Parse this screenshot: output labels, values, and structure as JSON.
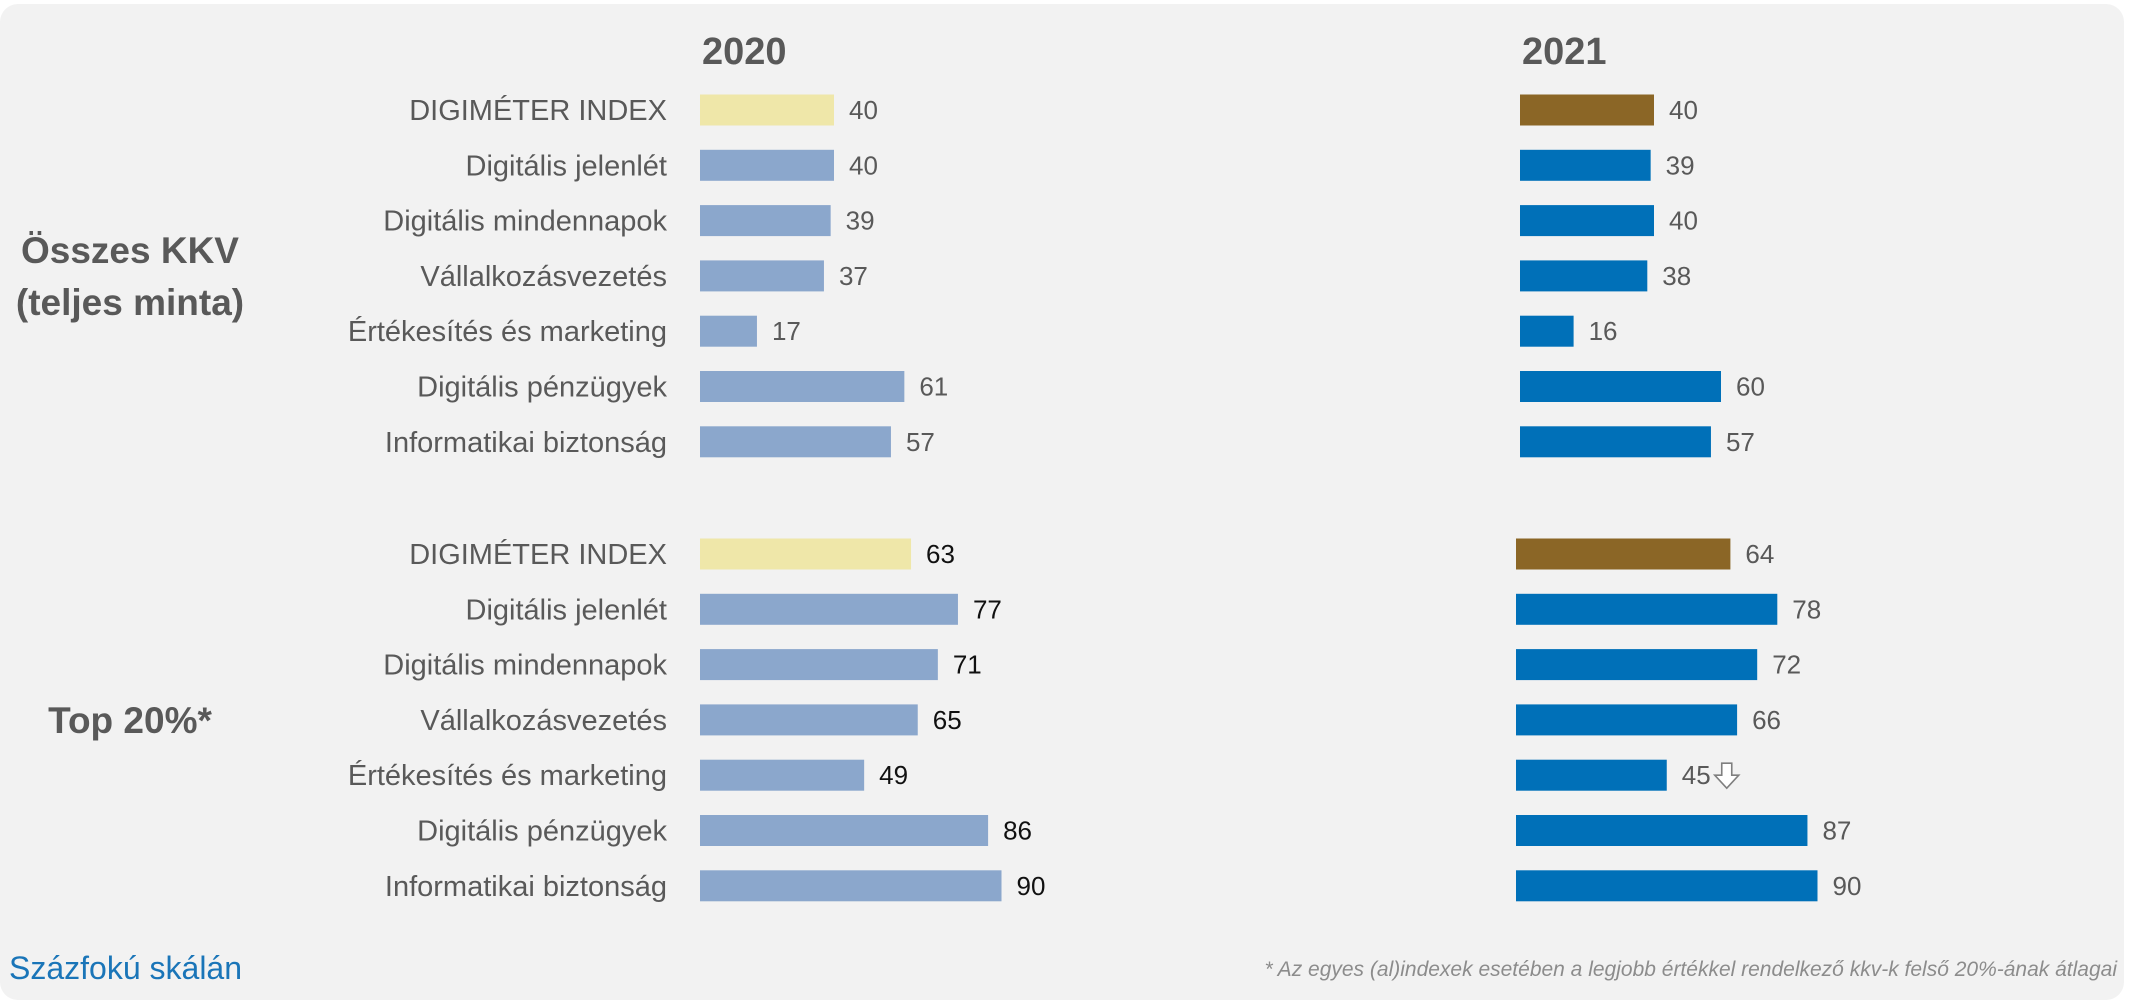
{
  "footer": {
    "scale_note": "Százfokú skálán",
    "footnote": "* Az egyes (al)indexek esetében a legjobb értékkel rendelkező kkv-k felső 20%-ának átlagai"
  },
  "colors": {
    "index_2020": "#efe7a9",
    "sub_2020": "#8ba7cc",
    "index_2021": "#8b6626",
    "sub_2021": "#0070b8",
    "label_text": "#595959",
    "scale_note": "#1a75b8"
  },
  "chart_data": {
    "type": "bar",
    "orientation": "horizontal",
    "columns": [
      "2020",
      "2021"
    ],
    "categories": [
      "DIGIMÉTER INDEX",
      "Digitális jelenlét",
      "Digitális mindennapok",
      "Vállalkozásvezetés",
      "Értékesítés és marketing",
      "Digitális pénzügyek",
      "Informatikai biztonság"
    ],
    "groups": [
      {
        "label_lines": [
          "Összes KKV",
          "(teljes minta)"
        ],
        "values": {
          "2020": [
            40,
            40,
            39,
            37,
            17,
            61,
            57
          ],
          "2021": [
            40,
            39,
            40,
            38,
            16,
            60,
            57
          ]
        }
      },
      {
        "label_lines": [
          "Top 20%*"
        ],
        "values": {
          "2020": [
            63,
            77,
            71,
            65,
            49,
            86,
            90
          ],
          "2021": [
            64,
            78,
            72,
            66,
            45,
            87,
            90
          ]
        },
        "annotations": [
          {
            "column": "2021",
            "category": "Értékesítés és marketing",
            "icon": "down-arrow-icon"
          }
        ]
      }
    ],
    "xlim": [
      0,
      100
    ],
    "grid": false,
    "legend": "none"
  }
}
